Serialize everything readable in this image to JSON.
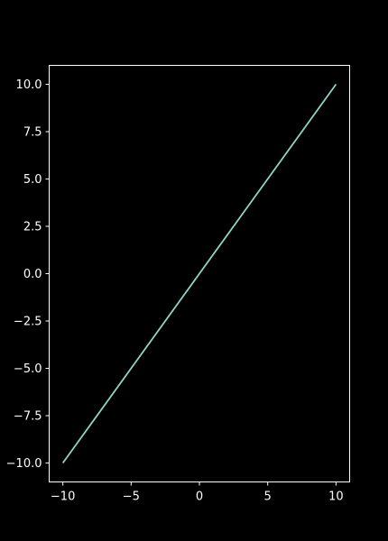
{
  "chart_data": {
    "type": "line",
    "title": "",
    "xlabel": "",
    "ylabel": "",
    "xlim": [
      -11,
      11
    ],
    "ylim": [
      -11,
      11
    ],
    "xticks": [
      -10,
      -5,
      0,
      5,
      10
    ],
    "xtick_labels": [
      "−10",
      "−5",
      "0",
      "5",
      "10"
    ],
    "yticks": [
      -10,
      -7.5,
      -5,
      -2.5,
      0,
      2.5,
      5,
      7.5,
      10
    ],
    "ytick_labels": [
      "−10.0",
      "−7.5",
      "−5.0",
      "−2.5",
      "0.0",
      "2.5",
      "5.0",
      "7.5",
      "10.0"
    ],
    "grid": false,
    "series": [
      {
        "x": [
          -10,
          10
        ],
        "y": [
          -10,
          10
        ],
        "color": "#8dd3c7"
      }
    ],
    "colors": {
      "background": "#000000",
      "axes": "#ffffff",
      "text": "#ffffff"
    }
  }
}
